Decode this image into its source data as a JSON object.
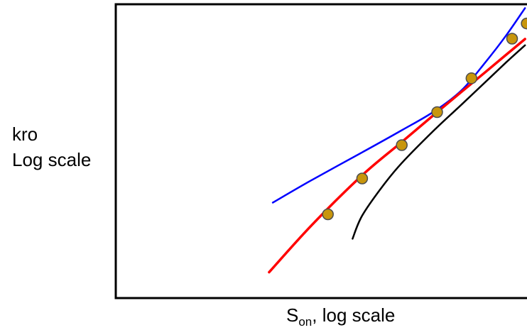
{
  "chart_data": {
    "type": "line",
    "title": "",
    "ylabel": [
      "kro",
      "Log scale"
    ],
    "xlabel": {
      "main": "S",
      "subscript": "on",
      "suffix": ", log scale"
    },
    "xscale": "log",
    "yscale": "log",
    "grid": false,
    "legend": "none",
    "series": [
      {
        "kind": "line",
        "color": "#0000ff",
        "x": [
          0.242,
          0.3,
          0.4,
          0.5,
          0.6,
          0.7,
          0.8,
          0.9,
          1.0
        ],
        "y": [
          0.0198,
          0.0307,
          0.0535,
          0.0828,
          0.1203,
          0.1826,
          0.3168,
          0.5414,
          0.9276
        ]
      },
      {
        "kind": "line",
        "color": "#ff0000",
        "x": [
          0.237,
          0.3,
          0.4,
          0.5,
          0.6,
          0.7,
          0.8,
          0.9,
          1.0
        ],
        "y": [
          0.005,
          0.0125,
          0.034,
          0.0656,
          0.1128,
          0.1773,
          0.261,
          0.3691,
          0.5025
        ]
      },
      {
        "kind": "line",
        "color": "#000000",
        "x": [
          0.379,
          0.4,
          0.45,
          0.5,
          0.6,
          0.7,
          0.8,
          0.9,
          1.0
        ],
        "y": [
          0.0097,
          0.0153,
          0.0277,
          0.0433,
          0.083,
          0.1377,
          0.2144,
          0.3178,
          0.4444
        ]
      },
      {
        "kind": "scatter",
        "color": "#c8960c",
        "x": [
          0.33,
          0.4,
          0.5,
          0.61,
          0.74,
          0.93,
          1.01
        ],
        "y": [
          0.0157,
          0.0319,
          0.0617,
          0.1185,
          0.2315,
          0.5064,
          0.684
        ]
      }
    ]
  }
}
